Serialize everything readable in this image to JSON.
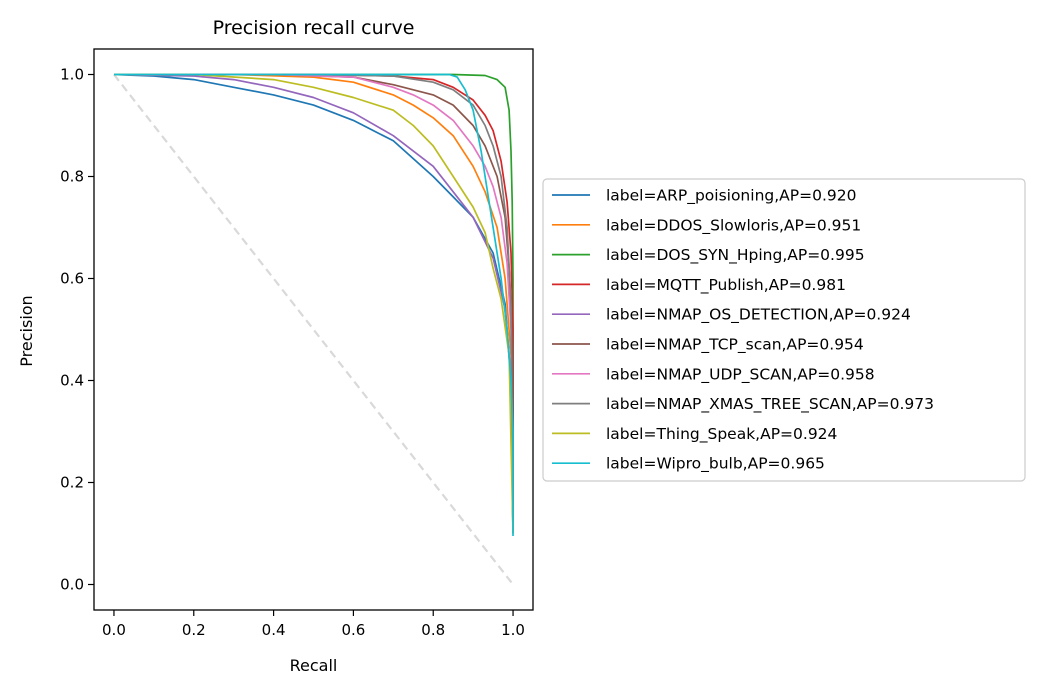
{
  "chart_data": {
    "type": "line",
    "title": "Precision recall curve",
    "xlabel": "Recall",
    "ylabel": "Precision",
    "xlim": [
      -0.05,
      1.05
    ],
    "ylim": [
      -0.05,
      1.05
    ],
    "xticks": [
      "0.0",
      "0.2",
      "0.4",
      "0.6",
      "0.8",
      "1.0"
    ],
    "yticks": [
      "0.0",
      "0.2",
      "0.4",
      "0.6",
      "0.8",
      "1.0"
    ],
    "grid": false,
    "legend_position": "center-left outside",
    "baseline": {
      "style": "dashed",
      "color": "#d9d9d9",
      "points": [
        [
          0,
          1
        ],
        [
          1,
          0
        ]
      ]
    },
    "series": [
      {
        "name": "label=ARP_poisioning,AP=0.920",
        "color": "#1f77b4",
        "points": [
          [
            0,
            1.0
          ],
          [
            0.1,
            0.997
          ],
          [
            0.2,
            0.99
          ],
          [
            0.3,
            0.975
          ],
          [
            0.4,
            0.96
          ],
          [
            0.5,
            0.94
          ],
          [
            0.6,
            0.91
          ],
          [
            0.7,
            0.87
          ],
          [
            0.8,
            0.8
          ],
          [
            0.85,
            0.76
          ],
          [
            0.9,
            0.72
          ],
          [
            0.95,
            0.65
          ],
          [
            0.98,
            0.55
          ],
          [
            0.995,
            0.4
          ],
          [
            1.0,
            0.1
          ]
        ]
      },
      {
        "name": "label=DDOS_Slowloris,AP=0.951",
        "color": "#ff7f0e",
        "points": [
          [
            0,
            1.0
          ],
          [
            0.3,
            1.0
          ],
          [
            0.5,
            0.995
          ],
          [
            0.6,
            0.985
          ],
          [
            0.7,
            0.96
          ],
          [
            0.75,
            0.94
          ],
          [
            0.8,
            0.915
          ],
          [
            0.85,
            0.88
          ],
          [
            0.9,
            0.82
          ],
          [
            0.93,
            0.77
          ],
          [
            0.96,
            0.7
          ],
          [
            0.98,
            0.6
          ],
          [
            0.995,
            0.45
          ],
          [
            1.0,
            0.1
          ]
        ]
      },
      {
        "name": "label=DOS_SYN_Hping,AP=0.995",
        "color": "#2ca02c",
        "points": [
          [
            0,
            1.0
          ],
          [
            0.5,
            1.0
          ],
          [
            0.85,
            1.0
          ],
          [
            0.93,
            0.998
          ],
          [
            0.96,
            0.99
          ],
          [
            0.98,
            0.975
          ],
          [
            0.99,
            0.93
          ],
          [
            0.995,
            0.85
          ],
          [
            0.998,
            0.75
          ],
          [
            1.0,
            0.6
          ],
          [
            1.0,
            0.1
          ]
        ]
      },
      {
        "name": "label=MQTT_Publish,AP=0.981",
        "color": "#d62728",
        "points": [
          [
            0,
            1.0
          ],
          [
            0.5,
            1.0
          ],
          [
            0.7,
            0.997
          ],
          [
            0.8,
            0.99
          ],
          [
            0.85,
            0.975
          ],
          [
            0.9,
            0.95
          ],
          [
            0.93,
            0.92
          ],
          [
            0.95,
            0.89
          ],
          [
            0.97,
            0.83
          ],
          [
            0.985,
            0.75
          ],
          [
            0.995,
            0.65
          ],
          [
            1.0,
            0.5
          ],
          [
            1.0,
            0.1
          ]
        ]
      },
      {
        "name": "label=NMAP_OS_DETECTION,AP=0.924",
        "color": "#9467bd",
        "points": [
          [
            0,
            1.0
          ],
          [
            0.2,
            0.997
          ],
          [
            0.3,
            0.99
          ],
          [
            0.4,
            0.975
          ],
          [
            0.5,
            0.955
          ],
          [
            0.6,
            0.925
          ],
          [
            0.7,
            0.88
          ],
          [
            0.8,
            0.82
          ],
          [
            0.85,
            0.77
          ],
          [
            0.9,
            0.72
          ],
          [
            0.95,
            0.64
          ],
          [
            0.98,
            0.54
          ],
          [
            0.995,
            0.4
          ],
          [
            1.0,
            0.1
          ]
        ]
      },
      {
        "name": "label=NMAP_TCP_scan,AP=0.954",
        "color": "#8c564b",
        "points": [
          [
            0,
            1.0
          ],
          [
            0.4,
            1.0
          ],
          [
            0.6,
            0.995
          ],
          [
            0.7,
            0.98
          ],
          [
            0.8,
            0.96
          ],
          [
            0.85,
            0.94
          ],
          [
            0.9,
            0.9
          ],
          [
            0.93,
            0.86
          ],
          [
            0.96,
            0.8
          ],
          [
            0.98,
            0.72
          ],
          [
            0.99,
            0.62
          ],
          [
            1.0,
            0.45
          ],
          [
            1.0,
            0.1
          ]
        ]
      },
      {
        "name": "label=NMAP_UDP_SCAN,AP=0.958",
        "color": "#e377c2",
        "points": [
          [
            0,
            1.0
          ],
          [
            0.4,
            1.0
          ],
          [
            0.6,
            0.995
          ],
          [
            0.7,
            0.975
          ],
          [
            0.75,
            0.96
          ],
          [
            0.8,
            0.94
          ],
          [
            0.85,
            0.91
          ],
          [
            0.9,
            0.86
          ],
          [
            0.93,
            0.82
          ],
          [
            0.95,
            0.78
          ],
          [
            0.97,
            0.72
          ],
          [
            0.985,
            0.63
          ],
          [
            0.995,
            0.5
          ],
          [
            1.0,
            0.1
          ]
        ]
      },
      {
        "name": "label=NMAP_XMAS_TREE_SCAN,AP=0.973",
        "color": "#7f7f7f",
        "points": [
          [
            0,
            1.0
          ],
          [
            0.5,
            1.0
          ],
          [
            0.7,
            0.997
          ],
          [
            0.8,
            0.985
          ],
          [
            0.85,
            0.97
          ],
          [
            0.9,
            0.94
          ],
          [
            0.93,
            0.9
          ],
          [
            0.95,
            0.86
          ],
          [
            0.97,
            0.8
          ],
          [
            0.985,
            0.7
          ],
          [
            0.995,
            0.55
          ],
          [
            1.0,
            0.1
          ]
        ]
      },
      {
        "name": "label=Thing_Speak,AP=0.924",
        "color": "#bcbd22",
        "points": [
          [
            0,
            1.0
          ],
          [
            0.2,
            1.0
          ],
          [
            0.4,
            0.99
          ],
          [
            0.5,
            0.975
          ],
          [
            0.6,
            0.955
          ],
          [
            0.7,
            0.93
          ],
          [
            0.75,
            0.9
          ],
          [
            0.8,
            0.86
          ],
          [
            0.85,
            0.8
          ],
          [
            0.9,
            0.74
          ],
          [
            0.93,
            0.69
          ],
          [
            0.95,
            0.62
          ],
          [
            0.97,
            0.56
          ],
          [
            0.99,
            0.45
          ],
          [
            1.0,
            0.1
          ]
        ]
      },
      {
        "name": "label=Wipro_bulb,AP=0.965",
        "color": "#17becf",
        "points": [
          [
            0,
            1.0
          ],
          [
            0.5,
            1.0
          ],
          [
            0.84,
            1.0
          ],
          [
            0.86,
            0.995
          ],
          [
            0.88,
            0.97
          ],
          [
            0.9,
            0.93
          ],
          [
            0.92,
            0.85
          ],
          [
            0.93,
            0.8
          ],
          [
            0.95,
            0.7
          ],
          [
            0.97,
            0.6
          ],
          [
            0.985,
            0.5
          ],
          [
            0.995,
            0.4
          ],
          [
            1.0,
            0.3
          ],
          [
            1.0,
            0.095
          ]
        ]
      }
    ]
  }
}
